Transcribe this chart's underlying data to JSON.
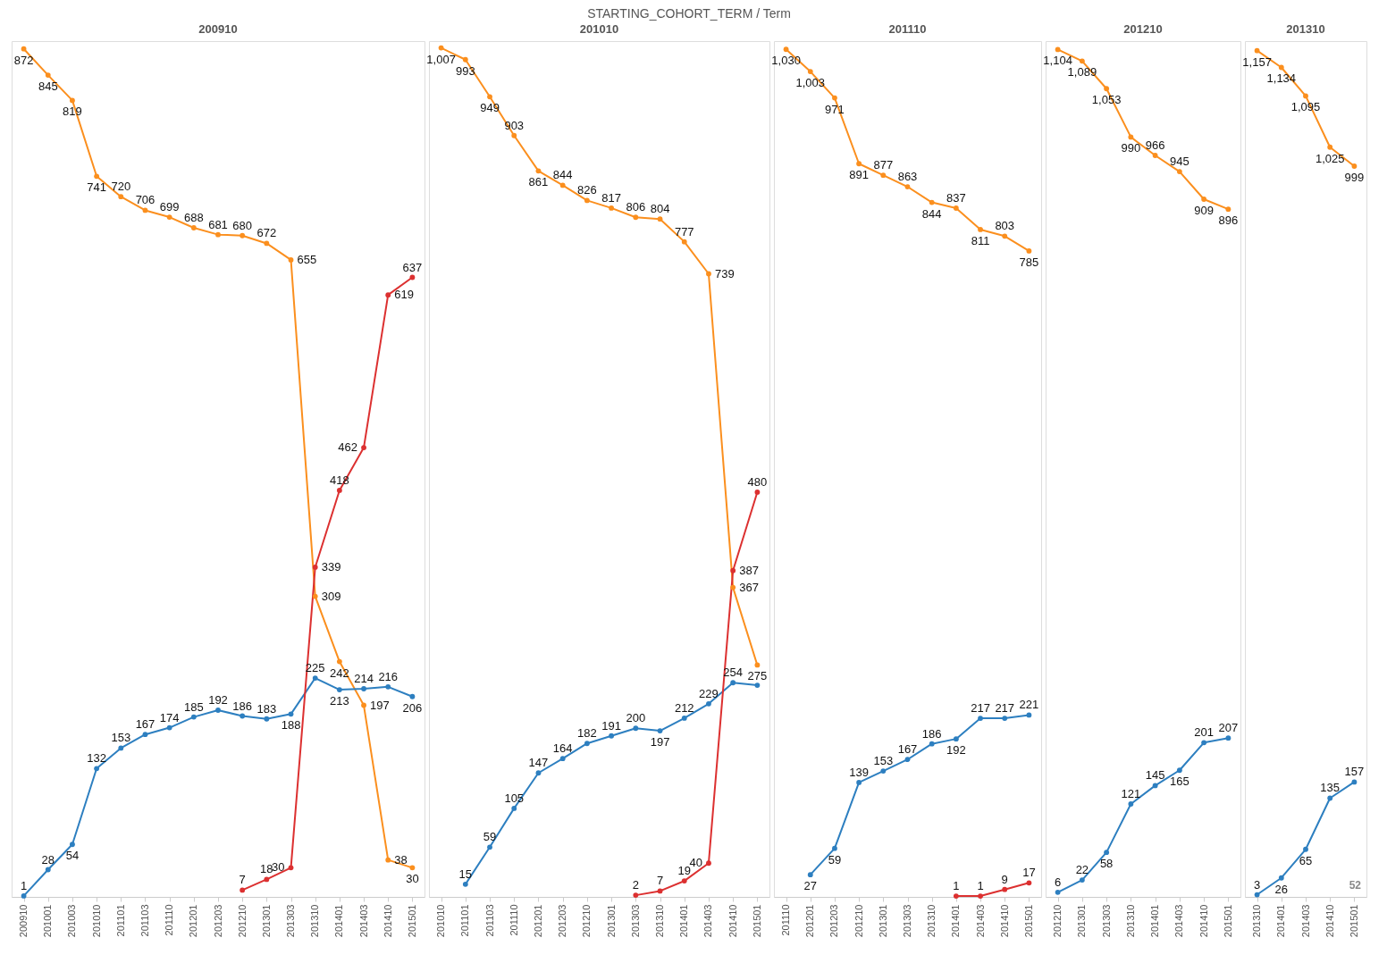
{
  "chart_data": [
    {
      "type": "line",
      "title": "200910",
      "annotations": [
        "STARTING_COHORT_TERM  /  Term"
      ],
      "categories": [
        "200910",
        "201001",
        "201003",
        "201010",
        "201101",
        "201103",
        "201110",
        "201201",
        "201203",
        "201210",
        "201301",
        "201303",
        "201310",
        "201401",
        "201403",
        "201410",
        "201501"
      ],
      "ylim": [
        0,
        880
      ],
      "tick_labels": "x",
      "marker": "circle",
      "grid": false,
      "legend": false,
      "series": [
        {
          "color": "#fb8f1e",
          "values": [
            872,
            845,
            819,
            741,
            720,
            706,
            699,
            688,
            681,
            680,
            672,
            655,
            309,
            242,
            197,
            38,
            30
          ],
          "value_labels": [
            "872",
            "845",
            "819",
            "741",
            "720",
            "706",
            "699",
            "688",
            "681",
            "680",
            "672",
            "655",
            "309",
            "242",
            "197",
            "38",
            "30"
          ]
        },
        {
          "color": "#2d7fc0",
          "values": [
            1,
            28,
            54,
            132,
            153,
            167,
            174,
            185,
            192,
            186,
            183,
            188,
            225,
            213,
            214,
            216,
            206
          ],
          "value_labels": [
            "1",
            "28",
            "54",
            "132",
            "153",
            "167",
            "174",
            "185",
            "192",
            "186",
            "183",
            "188",
            "225",
            "213",
            "214",
            "216",
            "206"
          ]
        },
        {
          "color": "#dc3030",
          "values": [
            null,
            null,
            null,
            null,
            null,
            null,
            null,
            null,
            null,
            7,
            18,
            30,
            339,
            418,
            462,
            619,
            637
          ],
          "value_labels": [
            null,
            null,
            null,
            null,
            null,
            null,
            null,
            null,
            null,
            "7",
            "18",
            "30",
            "339",
            "418",
            "462",
            "619",
            "637"
          ]
        }
      ]
    },
    {
      "type": "line",
      "title": "201010",
      "categories": [
        "201010",
        "201101",
        "201103",
        "201110",
        "201201",
        "201203",
        "201210",
        "201301",
        "201303",
        "201310",
        "201401",
        "201403",
        "201410",
        "201501"
      ],
      "ylim": [
        0,
        1015
      ],
      "tick_labels": "x",
      "marker": "circle",
      "grid": false,
      "legend": false,
      "series": [
        {
          "color": "#fb8f1e",
          "values": [
            1007,
            993,
            949,
            903,
            861,
            844,
            826,
            817,
            806,
            804,
            777,
            739,
            367,
            275
          ],
          "value_labels": [
            "1,007",
            "993",
            "949",
            "903",
            "861",
            "844",
            "826",
            "817",
            "806",
            "804",
            "777",
            "739",
            "367",
            "275"
          ]
        },
        {
          "color": "#2d7fc0",
          "values": [
            null,
            15,
            59,
            105,
            147,
            164,
            182,
            191,
            200,
            197,
            212,
            229,
            254,
            251
          ],
          "value_labels": [
            null,
            "15",
            "59",
            "105",
            "147",
            "164",
            "182",
            "191",
            "200",
            "197",
            "212",
            "229",
            "254",
            null
          ]
        },
        {
          "color": "#dc3030",
          "values": [
            null,
            null,
            null,
            null,
            null,
            null,
            null,
            null,
            2,
            7,
            19,
            40,
            387,
            480
          ],
          "value_labels": [
            null,
            null,
            null,
            null,
            null,
            null,
            null,
            null,
            "2",
            "7",
            "19",
            "40",
            "387",
            "480"
          ]
        }
      ]
    },
    {
      "type": "line",
      "title": "201110",
      "categories": [
        "201110",
        "201201",
        "201203",
        "201210",
        "201301",
        "201303",
        "201310",
        "201401",
        "201403",
        "201410",
        "201501"
      ],
      "ylim": [
        0,
        1040
      ],
      "tick_labels": "x",
      "marker": "circle",
      "grid": false,
      "legend": false,
      "series": [
        {
          "color": "#fb8f1e",
          "values": [
            1030,
            1003,
            971,
            891,
            877,
            863,
            844,
            837,
            811,
            803,
            785
          ],
          "value_labels": [
            "1,030",
            "1,003",
            "971",
            "891",
            "877",
            "863",
            "844",
            "837",
            "811",
            "803",
            "785"
          ]
        },
        {
          "color": "#2d7fc0",
          "values": [
            null,
            27,
            59,
            139,
            153,
            167,
            186,
            192,
            217,
            217,
            221
          ],
          "value_labels": [
            null,
            "27",
            "59",
            "139",
            "153",
            "167",
            "186",
            "192",
            "217",
            "217",
            "221"
          ]
        },
        {
          "color": "#dc3030",
          "values": [
            null,
            null,
            null,
            null,
            null,
            null,
            null,
            1,
            1,
            9,
            17
          ],
          "value_labels": [
            null,
            null,
            null,
            null,
            null,
            null,
            null,
            "1",
            "1",
            "9",
            "17"
          ]
        }
      ]
    },
    {
      "type": "line",
      "title": "201210",
      "categories": [
        "201210",
        "201301",
        "201303",
        "201310",
        "201401",
        "201403",
        "201410",
        "201501"
      ],
      "ylim": [
        0,
        1115
      ],
      "tick_labels": "x",
      "marker": "circle",
      "grid": false,
      "legend": false,
      "series": [
        {
          "color": "#fb8f1e",
          "values": [
            1104,
            1089,
            1053,
            990,
            966,
            945,
            909,
            896
          ],
          "value_labels": [
            "1,104",
            "1,089",
            "1,053",
            "990",
            "966",
            "945",
            "909",
            "896"
          ]
        },
        {
          "color": "#2d7fc0",
          "values": [
            6,
            22,
            58,
            121,
            145,
            165,
            201,
            207
          ],
          "value_labels": [
            "6",
            "22",
            "58",
            "121",
            "145",
            "165",
            "201",
            "207"
          ]
        }
      ]
    },
    {
      "type": "line",
      "title": "201310",
      "annotations": [
        "52"
      ],
      "categories": [
        "201310",
        "201401",
        "201403",
        "201410",
        "201501"
      ],
      "ylim": [
        0,
        1170
      ],
      "tick_labels": "x",
      "marker": "circle",
      "grid": false,
      "legend": false,
      "series": [
        {
          "color": "#fb8f1e",
          "values": [
            1157,
            1134,
            1095,
            1025,
            999
          ],
          "value_labels": [
            "1,157",
            "1,134",
            "1,095",
            "1,025",
            "999"
          ]
        },
        {
          "color": "#2d7fc0",
          "values": [
            3,
            26,
            65,
            135,
            157
          ],
          "value_labels": [
            "3",
            "26",
            "65",
            "135",
            "157"
          ]
        }
      ]
    }
  ]
}
